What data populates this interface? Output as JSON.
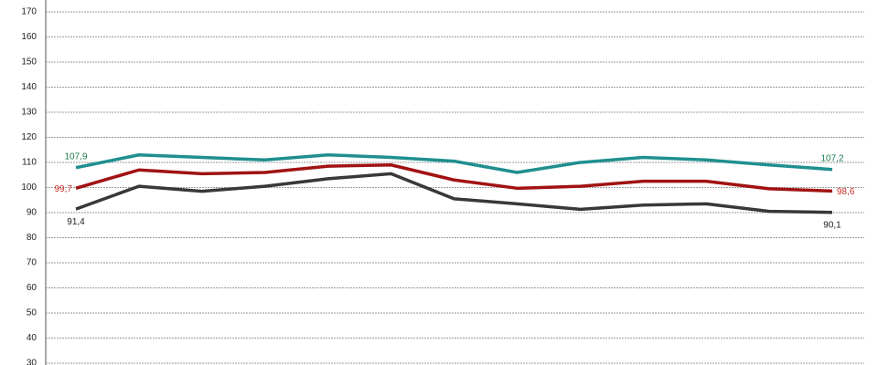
{
  "chart_data": {
    "type": "line",
    "categories": [
      null,
      null,
      null,
      null,
      null,
      null,
      null,
      null,
      null,
      null,
      null,
      null,
      null
    ],
    "series": [
      {
        "color": "#1f8f8f",
        "label_color": "#1e7b4f",
        "values": [
          107.9,
          113,
          112,
          111,
          113,
          112,
          110.5,
          106,
          110,
          112,
          111,
          109,
          107.2
        ],
        "value_labels": [
          "107,9",
          null,
          null,
          null,
          null,
          null,
          null,
          null,
          null,
          null,
          null,
          null,
          "107,2"
        ]
      },
      {
        "color": "#a11212",
        "label_color": "#c8302a",
        "values": [
          99.7,
          107,
          105.5,
          106,
          108.5,
          109,
          103,
          99.7,
          100.5,
          102.5,
          102.5,
          99.5,
          98.6
        ],
        "value_labels": [
          "99,7",
          null,
          null,
          null,
          null,
          null,
          null,
          null,
          null,
          null,
          null,
          null,
          "98,6"
        ]
      },
      {
        "color": "#383838",
        "label_color": "#222222",
        "values": [
          91.4,
          100.5,
          98.5,
          100.5,
          103.5,
          105.5,
          95.5,
          93.5,
          91.3,
          93,
          93.5,
          90.5,
          90.1
        ],
        "value_labels": [
          "91,4",
          null,
          null,
          null,
          null,
          null,
          null,
          null,
          null,
          null,
          null,
          null,
          "90,1"
        ]
      }
    ],
    "ylim": [
      30,
      170
    ],
    "yticks": [
      30,
      40,
      50,
      60,
      70,
      80,
      90,
      100,
      110,
      120,
      130,
      140,
      150,
      160,
      170
    ],
    "grid": true
  }
}
